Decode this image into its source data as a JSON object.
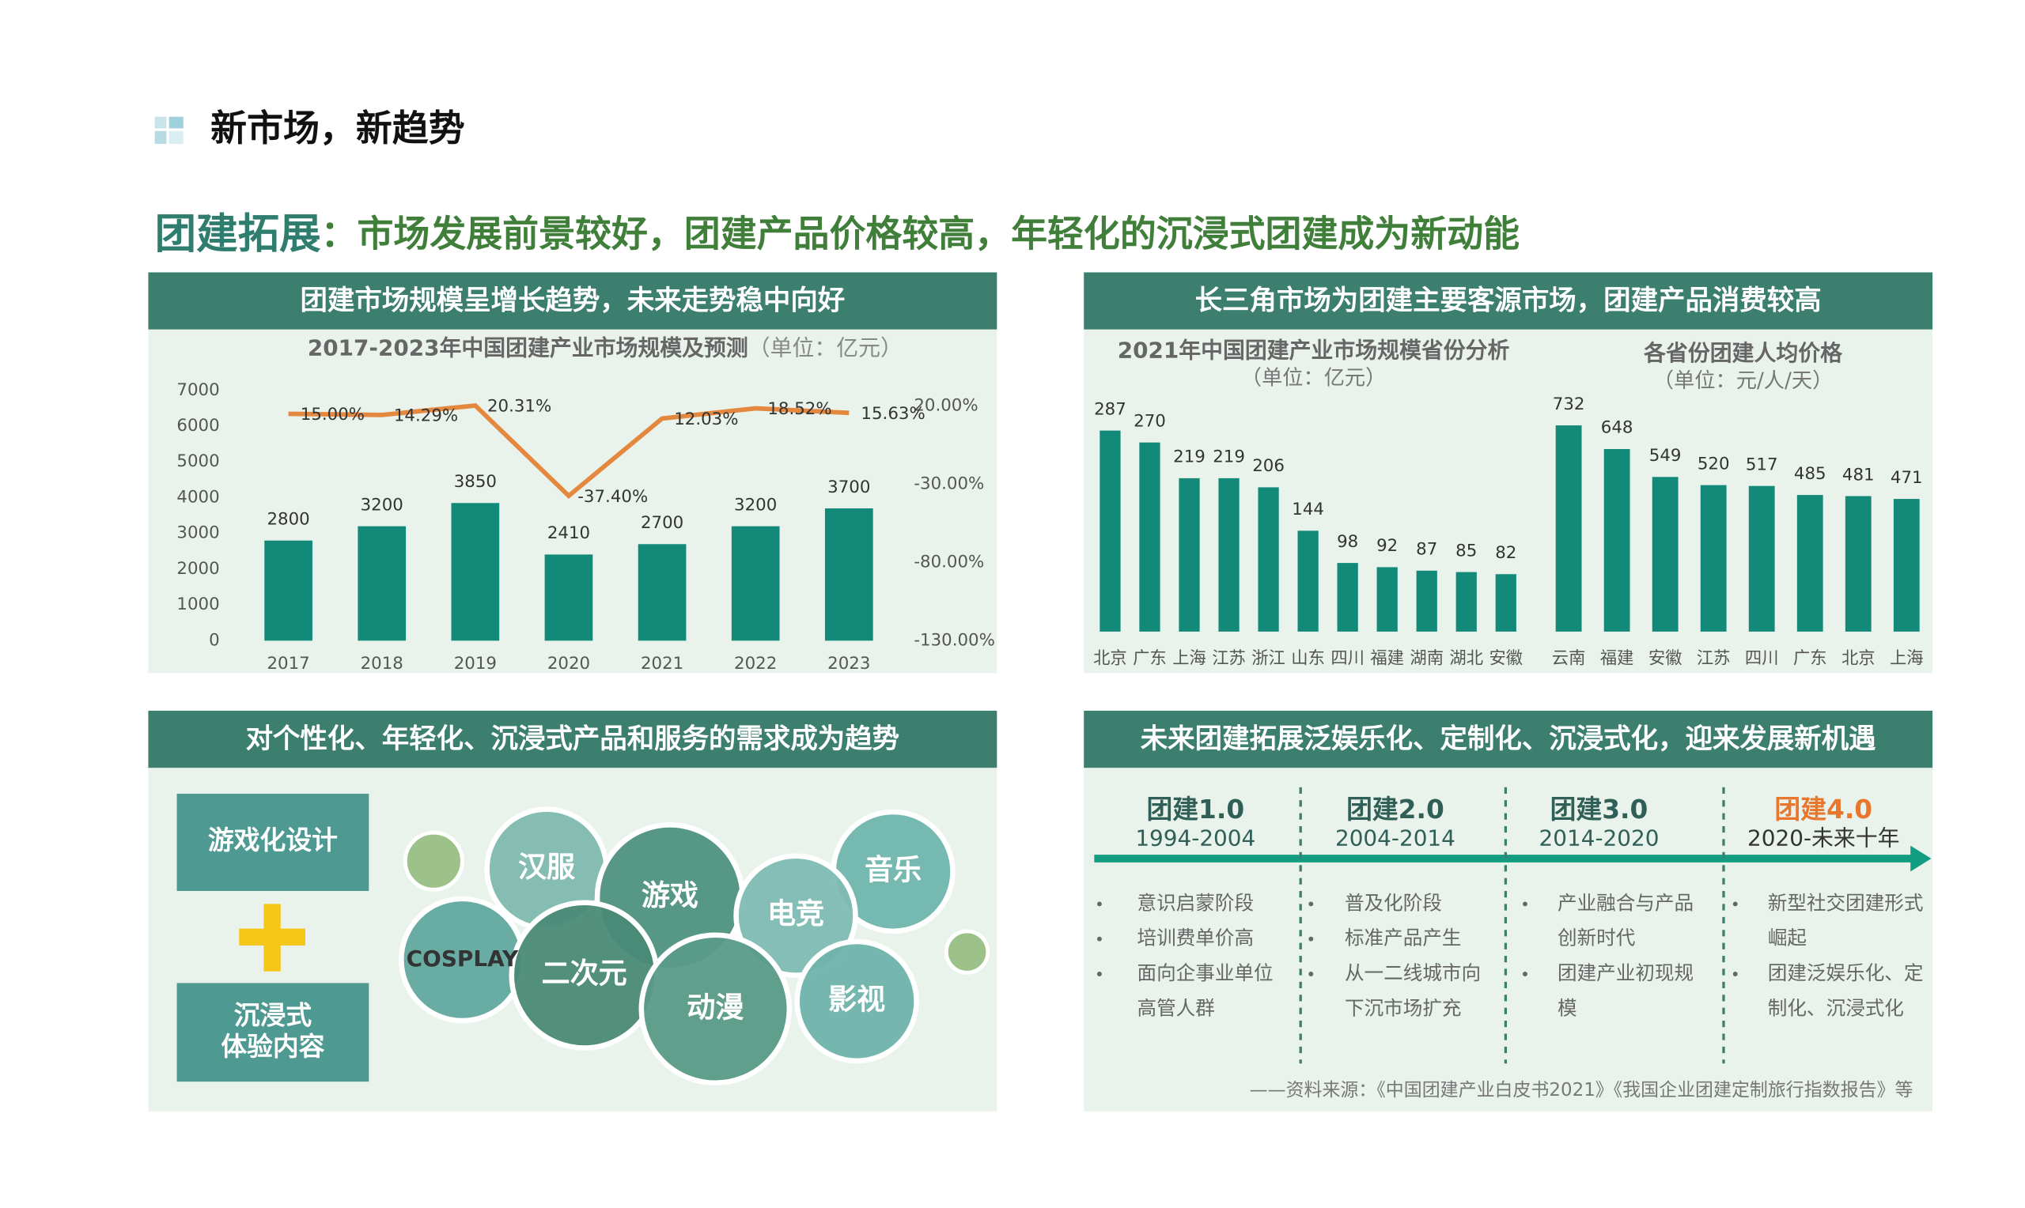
{
  "header": {
    "title": "新市场，新趋势",
    "lead": "团建拓展",
    "subtitle": "：市场发展前景较好，团建产品价格较高，年轻化的沉浸式团建成为新动能"
  },
  "panels": [
    {
      "title": "团建市场规模呈增长趋势，未来走势稳中向好"
    },
    {
      "title": "长三角市场为团建主要客源市场，团建产品消费较高"
    },
    {
      "title": "对个性化、年轻化、沉浸式产品和服务的需求成为趋势"
    },
    {
      "title": "未来团建拓展泛娱乐化、定制化、沉浸式化，迎来发展新机遇"
    }
  ],
  "chart_data": [
    {
      "type": "combo",
      "title": "2017-2023年中国团建产业市场规模及预测",
      "subtitle": "（单位：亿元）",
      "categories": [
        "2017",
        "2018",
        "2019",
        "2020",
        "2021",
        "2022",
        "2023"
      ],
      "series": [
        {
          "type": "bar",
          "color": "#13897a",
          "values": [
            2800,
            3200,
            3850,
            2410,
            2700,
            3200,
            3700
          ]
        },
        {
          "type": "line",
          "axis": "y2",
          "color": "#e5883f",
          "values": [
            15.0,
            14.29,
            20.31,
            -37.4,
            12.03,
            18.52,
            15.63
          ],
          "value_labels": [
            "15.00%",
            "14.29%",
            "20.31%",
            "-37.40%",
            "12.03%",
            "18.52%",
            "15.63%"
          ]
        }
      ],
      "ylim": [
        0,
        7000
      ],
      "yticks": [
        0,
        1000,
        2000,
        3000,
        4000,
        5000,
        6000,
        7000
      ],
      "y2lim": [
        -130,
        30
      ],
      "y2ticks": [
        {
          "value": 20,
          "label": "20.00%"
        },
        {
          "value": -30,
          "label": "-30.00%"
        },
        {
          "value": -80,
          "label": "-80.00%"
        },
        {
          "value": -130,
          "label": "-130.00%"
        }
      ],
      "grid": false
    },
    {
      "type": "bar",
      "title": "2021年中国团建产业市场规模省份分析",
      "subtitle": "（单位：亿元）",
      "color": "#13897a",
      "categories": [
        "北京",
        "广东",
        "上海",
        "江苏",
        "浙江",
        "山东",
        "四川",
        "福建",
        "湖南",
        "湖北",
        "安徽"
      ],
      "values": [
        287,
        270,
        219,
        219,
        206,
        144,
        98,
        92,
        87,
        85,
        82
      ]
    },
    {
      "type": "bar",
      "title": "各省份团建人均价格",
      "subtitle": "（单位：元/人/天）",
      "color": "#13897a",
      "categories": [
        "云南",
        "福建",
        "安徽",
        "江苏",
        "四川",
        "广东",
        "北京",
        "上海"
      ],
      "values": [
        732,
        648,
        549,
        520,
        517,
        485,
        481,
        471
      ]
    }
  ],
  "trend": {
    "boxes": [
      [
        "游戏化设计"
      ],
      [
        "沉浸式",
        "体验内容"
      ]
    ],
    "bubbles": [
      "汉服",
      "游戏",
      "音乐",
      "电竞",
      "COSPLAY",
      "二次元",
      "动漫",
      "影视"
    ]
  },
  "timeline": {
    "stages": [
      {
        "label": "团建1.0",
        "period": "1994-2004",
        "color": "#2f5f57",
        "items": [
          [
            "意识启蒙阶段"
          ],
          [
            "培训费单价高"
          ],
          [
            "面向企事业单位",
            "高管人群"
          ]
        ]
      },
      {
        "label": "团建2.0",
        "period": "2004-2014",
        "color": "#2f5f57",
        "items": [
          [
            "普及化阶段"
          ],
          [
            "标准产品产生"
          ],
          [
            "从一二线城市向",
            "下沉市场扩充"
          ]
        ]
      },
      {
        "label": "团建3.0",
        "period": "2014-2020",
        "color": "#2f5f57",
        "items": [
          [
            "产业融合与产品",
            "创新时代"
          ],
          [
            "团建产业初现规",
            "模"
          ]
        ]
      },
      {
        "label": "团建4.0",
        "period": "2020-未来十年",
        "color": "#e8762c",
        "items": [
          [
            "新型社交团建形式",
            "崛起"
          ],
          [
            "团建泛娱乐化、定",
            "制化、沉浸式化"
          ]
        ]
      }
    ],
    "source": "——资料来源：《中国团建产业白皮书2021》《我国企业团建定制旅行指数报告》等"
  }
}
